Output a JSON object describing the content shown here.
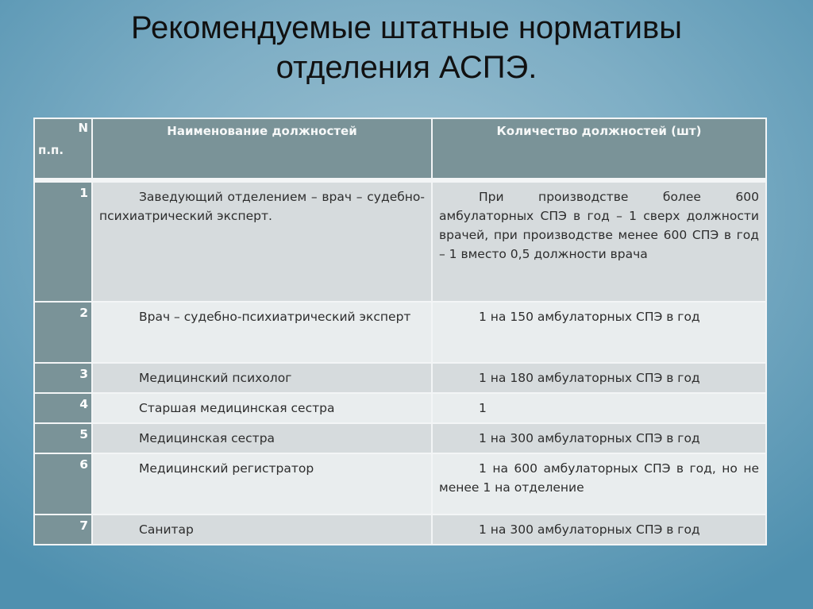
{
  "title": {
    "line1": "Рекомендуемые штатные нормативы",
    "line2": "отделения АСПЭ."
  },
  "table": {
    "headers": {
      "num_top": "N",
      "num_bottom": "п.п.",
      "name": "Наименование должностей",
      "count": "Количество должностей (шт)"
    },
    "rows": [
      {
        "num": "1",
        "name": "Заведующий отделением – врач – судебно-психиатрический эксперт.",
        "count": "При производстве более 600 амбулаторных СПЭ в год – 1 сверх должности врачей, при производстве менее 600 СПЭ в год – 1 вместо 0,5 должности врача"
      },
      {
        "num": "2",
        "name": "Врач – судебно-психиатрический эксперт",
        "count": "1 на 150 амбулаторных СПЭ в год"
      },
      {
        "num": "3",
        "name": "Медицинский психолог",
        "count": "1 на 180 амбулаторных СПЭ в год"
      },
      {
        "num": "4",
        "name": "Старшая медицинская сестра",
        "count": "1"
      },
      {
        "num": "5",
        "name": "Медицинская сестра",
        "count": "1 на 300 амбулаторных СПЭ в год"
      },
      {
        "num": "6",
        "name": "Медицинский регистратор",
        "count": "1 на 600 амбулаторных СПЭ в год, но не менее 1 на отделение"
      },
      {
        "num": "7",
        "name": "Санитар",
        "count": "1 на 300 амбулаторных СПЭ в год"
      }
    ]
  }
}
